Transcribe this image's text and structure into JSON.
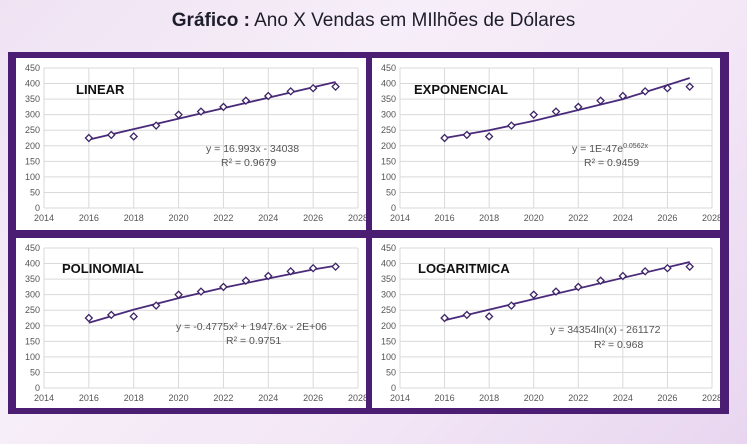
{
  "header": {
    "title_bold": "Gráfico :",
    "title_rest": " Ano X Vendas em MIlhões de Dólares"
  },
  "colors": {
    "frame": "#4b1e74",
    "line": "#4a2a7a",
    "marker": "#3d2466",
    "grid": "#d9d9d9"
  },
  "chart_data": [
    {
      "type": "scatter",
      "title": "LINEAR",
      "equation": "y = 16.993x - 34038",
      "r2": "R² = 0.9679",
      "x": [
        2016,
        2017,
        2018,
        2019,
        2020,
        2021,
        2022,
        2023,
        2024,
        2025,
        2026,
        2027
      ],
      "y": [
        225,
        235,
        230,
        265,
        300,
        310,
        325,
        345,
        360,
        375,
        385,
        390
      ],
      "trend": {
        "x": [
          2016,
          2027
        ],
        "y": [
          220,
          405
        ]
      },
      "xticks": [
        "2014",
        "2016",
        "2018",
        "2020",
        "2022",
        "2024",
        "2026",
        "2028"
      ],
      "yticks": [
        "0",
        "50",
        "100",
        "150",
        "200",
        "250",
        "300",
        "350",
        "400",
        "450"
      ],
      "xlim": [
        2014,
        2028
      ],
      "ylim": [
        0,
        450
      ],
      "grid": true
    },
    {
      "type": "scatter",
      "title": "EXPONENCIAL",
      "equation": "y = 1E-47e",
      "equation_sup": "0.0562x",
      "r2": "R² = 0.9459",
      "x": [
        2016,
        2017,
        2018,
        2019,
        2020,
        2021,
        2022,
        2023,
        2024,
        2025,
        2026,
        2027
      ],
      "y": [
        225,
        235,
        230,
        265,
        300,
        310,
        325,
        345,
        360,
        375,
        385,
        390
      ],
      "trend": {
        "x": [
          2016,
          2018,
          2020,
          2022,
          2024,
          2026,
          2027
        ],
        "y": [
          225,
          250,
          280,
          315,
          350,
          395,
          418
        ]
      },
      "xticks": [
        "2014",
        "2016",
        "2018",
        "2020",
        "2022",
        "2024",
        "2026",
        "2028"
      ],
      "yticks": [
        "0",
        "50",
        "100",
        "150",
        "200",
        "250",
        "300",
        "350",
        "400",
        "450"
      ],
      "xlim": [
        2014,
        2028
      ],
      "ylim": [
        0,
        450
      ],
      "grid": true
    },
    {
      "type": "scatter",
      "title": "POLINOMIAL",
      "equation": "y = -0.4775x² + 1947.6x - 2E+06",
      "r2": "R² = 0.9751",
      "x": [
        2016,
        2017,
        2018,
        2019,
        2020,
        2021,
        2022,
        2023,
        2024,
        2025,
        2026,
        2027
      ],
      "y": [
        225,
        235,
        230,
        265,
        300,
        310,
        325,
        345,
        360,
        375,
        385,
        390
      ],
      "trend": {
        "x": [
          2016,
          2018,
          2020,
          2022,
          2024,
          2026,
          2027
        ],
        "y": [
          210,
          252,
          289,
          322,
          352,
          381,
          393
        ]
      },
      "xticks": [
        "2014",
        "2016",
        "2018",
        "2020",
        "2022",
        "2024",
        "2026",
        "2028"
      ],
      "yticks": [
        "0",
        "50",
        "100",
        "150",
        "200",
        "250",
        "300",
        "350",
        "400",
        "450"
      ],
      "xlim": [
        2014,
        2028
      ],
      "ylim": [
        0,
        450
      ],
      "grid": true
    },
    {
      "type": "scatter",
      "title": "LOGARITMICA",
      "equation": "y = 34354ln(x) - 261172",
      "r2": "R² = 0.968",
      "x": [
        2016,
        2017,
        2018,
        2019,
        2020,
        2021,
        2022,
        2023,
        2024,
        2025,
        2026,
        2027
      ],
      "y": [
        225,
        235,
        230,
        265,
        300,
        310,
        325,
        345,
        360,
        375,
        385,
        390
      ],
      "trend": {
        "x": [
          2016,
          2027
        ],
        "y": [
          218,
          405
        ]
      },
      "xticks": [
        "2014",
        "2016",
        "2018",
        "2020",
        "2022",
        "2024",
        "2026",
        "2028"
      ],
      "yticks": [
        "0",
        "50",
        "100",
        "150",
        "200",
        "250",
        "300",
        "350",
        "400",
        "450"
      ],
      "xlim": [
        2014,
        2028
      ],
      "ylim": [
        0,
        450
      ],
      "grid": true
    }
  ]
}
